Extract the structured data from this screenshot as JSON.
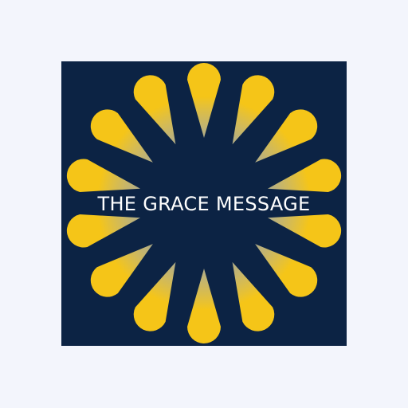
{
  "logo": {
    "title": "THE GRACE MESSAGE",
    "background_color": "#0c2344",
    "ray_color": "#f5c518",
    "ray_fade_color": "#e6d9a0",
    "text_color": "#ffffff",
    "ray_count": 14,
    "icon": "sunburst-icon"
  }
}
